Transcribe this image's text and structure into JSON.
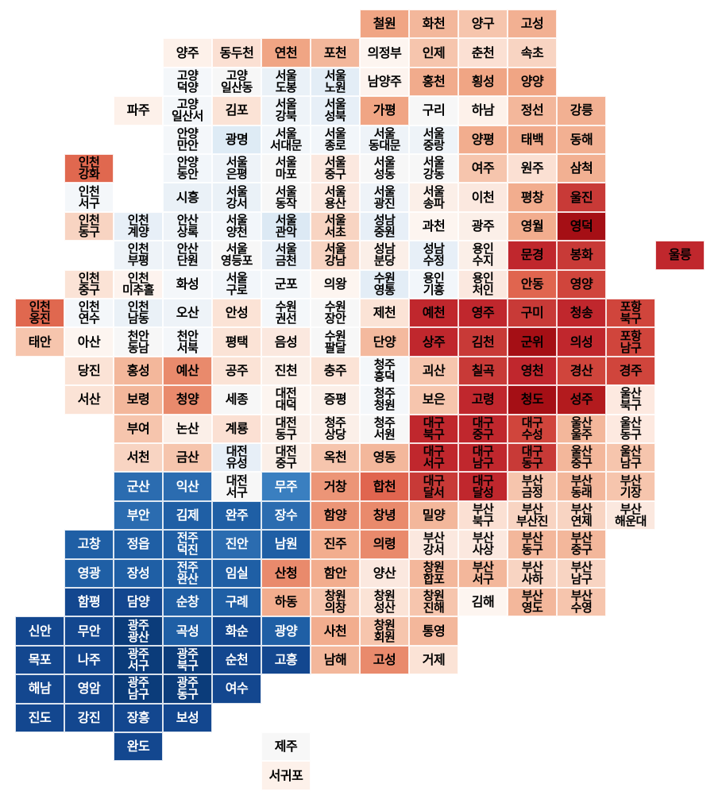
{
  "rows": [
    [
      null,
      null,
      null,
      null,
      null,
      null,
      null,
      {
        "label": "철원",
        "color": "#f0a584"
      },
      {
        "label": "화천",
        "color": "#f3b79b"
      },
      {
        "label": "양구",
        "color": "#f6c5ad"
      },
      {
        "label": "고성",
        "color": "#f2b092"
      }
    ],
    [
      null,
      null,
      null,
      {
        "label": "양주",
        "color": "#fdf1ea"
      },
      {
        "label": "동두천",
        "color": "#fbe0d3"
      },
      {
        "label": "연천",
        "color": "#f0a584"
      },
      {
        "label": "포천",
        "color": "#f3b79b"
      },
      {
        "label": "의정부",
        "color": "#fdf5f0"
      },
      {
        "label": "인제",
        "color": "#f6c5ad"
      },
      {
        "label": "춘천",
        "color": "#fbe0d3"
      },
      {
        "label": "속초",
        "color": "#f8d4c2"
      }
    ],
    [
      null,
      null,
      null,
      {
        "label": "고양\n덕양",
        "color": "#f4f7fa"
      },
      {
        "label": "고양\n일산동",
        "color": "#f7f7f7"
      },
      {
        "label": "서울\n도봉",
        "color": "#eaf1f7"
      },
      {
        "label": "서울\n노원",
        "color": "#e3edf6"
      },
      {
        "label": "남양주",
        "color": "#fdf3ee"
      },
      {
        "label": "홍천",
        "color": "#f1ab8c"
      },
      {
        "label": "횡성",
        "color": "#f0a584"
      },
      {
        "label": "양양",
        "color": "#f0a584"
      }
    ],
    [
      null,
      null,
      {
        "label": "파주",
        "color": "#fdf1ea"
      },
      {
        "label": "고양\n일산서",
        "color": "#f4f7fa"
      },
      {
        "label": "김포",
        "color": "#fbe3d6"
      },
      {
        "label": "서울\n강북",
        "color": "#eef3f8"
      },
      {
        "label": "서울\n성북",
        "color": "#e7eff7"
      },
      {
        "label": "가평",
        "color": "#f0a584"
      },
      {
        "label": "구리",
        "color": "#f7f7f7"
      },
      {
        "label": "하남",
        "color": "#fdf1ea"
      },
      {
        "label": "정선",
        "color": "#f3b79b"
      },
      {
        "label": "강릉",
        "color": "#f2b092"
      }
    ],
    [
      null,
      null,
      null,
      {
        "label": "안양\n만안",
        "color": "#f4f7fa"
      },
      {
        "label": "광명",
        "color": "#deebf5"
      },
      {
        "label": "서울\n서대문",
        "color": "#f2f6fa"
      },
      {
        "label": "서울\n종로",
        "color": "#f2f6fa"
      },
      {
        "label": "서울\n동대문",
        "color": "#eef3f8"
      },
      {
        "label": "서울\n중랑",
        "color": "#eef3f8"
      },
      {
        "label": "양평",
        "color": "#f2ad8e"
      },
      {
        "label": "태백",
        "color": "#f1ab8c"
      },
      {
        "label": "동해",
        "color": "#f2b092"
      }
    ],
    [
      null,
      {
        "label": "인천\n강화",
        "color": "#e0684f"
      },
      null,
      {
        "label": "안양\n동안",
        "color": "#f2f6fa"
      },
      {
        "label": "서울\n은평",
        "color": "#eef3f8"
      },
      {
        "label": "서울\n마포",
        "color": "#f7f7f7"
      },
      {
        "label": "서울\n중구",
        "color": "#fbe8df"
      },
      {
        "label": "서울\n성동",
        "color": "#f7f7f7"
      },
      {
        "label": "서울\n강동",
        "color": "#f7f7f7"
      },
      {
        "label": "여주",
        "color": "#f6c5ad"
      },
      {
        "label": "원주",
        "color": "#fbe0d3"
      },
      {
        "label": "삼척",
        "color": "#f2b092"
      }
    ],
    [
      null,
      {
        "label": "인천\n서구",
        "color": "#f4f7fa"
      },
      null,
      {
        "label": "시흥",
        "color": "#eaf1f7"
      },
      {
        "label": "서울\n강서",
        "color": "#eaf1f7"
      },
      {
        "label": "서울\n동작",
        "color": "#f7f7f7"
      },
      {
        "label": "서울\n용산",
        "color": "#fbe8df"
      },
      {
        "label": "서울\n광진",
        "color": "#eef3f8"
      },
      {
        "label": "서울\n송파",
        "color": "#fbefe8"
      },
      {
        "label": "이천",
        "color": "#fbe8df"
      },
      {
        "label": "평창",
        "color": "#f2ad8e"
      },
      {
        "label": "울진",
        "color": "#c83a37"
      }
    ],
    [
      null,
      {
        "label": "인천\n동구",
        "color": "#f8d4c2"
      },
      {
        "label": "인천\n계양",
        "color": "#e7eff7"
      },
      {
        "label": "안산\n상록",
        "color": "#eef3f8"
      },
      {
        "label": "서울\n양천",
        "color": "#f2f6fa"
      },
      {
        "label": "서울\n관악",
        "color": "#dce9f4"
      },
      {
        "label": "서울\n서초",
        "color": "#f8d4c2"
      },
      {
        "label": "성남\n중원",
        "color": "#e7eff7"
      },
      {
        "label": "과천",
        "color": "#fdf5f0"
      },
      {
        "label": "광주",
        "color": "#fbefe8"
      },
      {
        "label": "영월",
        "color": "#f2ad8e"
      },
      {
        "label": "영덕",
        "color": "#a50f15"
      }
    ],
    [
      null,
      null,
      {
        "label": "인천\n부평",
        "color": "#eef3f8"
      },
      {
        "label": "안산\n단원",
        "color": "#eef3f8"
      },
      {
        "label": "서울\n영등포",
        "color": "#f7f7f7"
      },
      {
        "label": "서울\n금천",
        "color": "#e7eff7"
      },
      {
        "label": "서울\n강남",
        "color": "#f8d4c2"
      },
      {
        "label": "성남\n분당",
        "color": "#fbefe8"
      },
      {
        "label": "성남\n수정",
        "color": "#e7eff7"
      },
      {
        "label": "용인\n수지",
        "color": "#fbefe8"
      },
      {
        "label": "문경",
        "color": "#c0272d"
      },
      {
        "label": "봉화",
        "color": "#c83a37"
      },
      null,
      {
        "label": "울릉",
        "color": "#c0272d"
      }
    ],
    [
      null,
      {
        "label": "인천\n중구",
        "color": "#fbe3d6"
      },
      {
        "label": "인천\n미추홀",
        "color": "#fdf3ee"
      },
      {
        "label": "화성",
        "color": "#f4f7fa"
      },
      {
        "label": "서울\n구로",
        "color": "#f2f6fa"
      },
      {
        "label": "군포",
        "color": "#f4f7fa"
      },
      {
        "label": "의왕",
        "color": "#fdf5f0"
      },
      {
        "label": "수원\n영통",
        "color": "#e3edf6"
      },
      {
        "label": "용인\n기흥",
        "color": "#f2f6fa"
      },
      {
        "label": "용인\n처인",
        "color": "#fbe8df"
      },
      {
        "label": "안동",
        "color": "#e0654f"
      },
      {
        "label": "영양",
        "color": "#d0453c"
      }
    ],
    [
      {
        "label": "인천\n옹진",
        "color": "#e0684f"
      },
      {
        "label": "인천\n연수",
        "color": "#f4f7fa"
      },
      {
        "label": "인천\n남동",
        "color": "#eaf1f7"
      },
      {
        "label": "오산",
        "color": "#eef3f8"
      },
      {
        "label": "안성",
        "color": "#fbe3d6"
      },
      {
        "label": "수원\n권선",
        "color": "#f4f7fa"
      },
      {
        "label": "수원\n장안",
        "color": "#f7f7f7"
      },
      {
        "label": "제천",
        "color": "#fbe3d6"
      },
      {
        "label": "예천",
        "color": "#c0272d"
      },
      {
        "label": "영주",
        "color": "#c0272d"
      },
      {
        "label": "구미",
        "color": "#c83a37"
      },
      {
        "label": "청송",
        "color": "#c0272d"
      },
      {
        "label": "포항\n북구",
        "color": "#d0453c"
      }
    ],
    [
      {
        "label": "태안",
        "color": "#f6c5ad"
      },
      {
        "label": "아산",
        "color": "#fdf5f0"
      },
      {
        "label": "천안\n동남",
        "color": "#f7f7f7"
      },
      {
        "label": "천안\n서북",
        "color": "#f4f7fa"
      },
      {
        "label": "평택",
        "color": "#fbe3d6"
      },
      {
        "label": "음성",
        "color": "#fbe8df"
      },
      {
        "label": "수원\n팔달",
        "color": "#f7f7f7"
      },
      {
        "label": "단양",
        "color": "#f4b99e"
      },
      {
        "label": "상주",
        "color": "#c0272d"
      },
      {
        "label": "김천",
        "color": "#c83a37"
      },
      {
        "label": "군위",
        "color": "#a50f15"
      },
      {
        "label": "의성",
        "color": "#c0272d"
      },
      {
        "label": "포항\n남구",
        "color": "#d0453c"
      }
    ],
    [
      null,
      {
        "label": "당진",
        "color": "#fbe3d6"
      },
      {
        "label": "홍성",
        "color": "#f3b79b"
      },
      {
        "label": "예산",
        "color": "#e98a6c"
      },
      {
        "label": "공주",
        "color": "#fbe3d6"
      },
      {
        "label": "진천",
        "color": "#fbefe8"
      },
      {
        "label": "충주",
        "color": "#fbe3d6"
      },
      {
        "label": "청주\n흥덕",
        "color": "#f4f7fa"
      },
      {
        "label": "괴산",
        "color": "#f6c5ad"
      },
      {
        "label": "칠곡",
        "color": "#c83a37"
      },
      {
        "label": "영천",
        "color": "#c0272d"
      },
      {
        "label": "경산",
        "color": "#d0453c"
      },
      {
        "label": "경주",
        "color": "#d0453c"
      }
    ],
    [
      null,
      {
        "label": "서산",
        "color": "#fbe3d6"
      },
      {
        "label": "보령",
        "color": "#f3b79b"
      },
      {
        "label": "청양",
        "color": "#e98a6c"
      },
      {
        "label": "세종",
        "color": "#f7f7f7"
      },
      {
        "label": "대전\n대덕",
        "color": "#fdf5f0"
      },
      {
        "label": "증평",
        "color": "#fbefe8"
      },
      {
        "label": "청주\n청원",
        "color": "#f4f7fa"
      },
      {
        "label": "보은",
        "color": "#f6c5ad"
      },
      {
        "label": "고령",
        "color": "#c0272d"
      },
      {
        "label": "청도",
        "color": "#a50f15"
      },
      {
        "label": "성주",
        "color": "#b31b1e"
      },
      {
        "label": "울산\n북구",
        "color": "#fde9e0"
      }
    ],
    [
      null,
      null,
      {
        "label": "부여",
        "color": "#f6c5ad"
      },
      {
        "label": "논산",
        "color": "#fbefe8"
      },
      {
        "label": "계룡",
        "color": "#fbe0d3"
      },
      {
        "label": "대전\n동구",
        "color": "#fbefe8"
      },
      {
        "label": "청주\n상당",
        "color": "#fbefe8"
      },
      {
        "label": "청주\n서원",
        "color": "#f7f7f7"
      },
      {
        "label": "대구\n북구",
        "color": "#c0272d"
      },
      {
        "label": "대구\n중구",
        "color": "#c0272d"
      },
      {
        "label": "대구\n수성",
        "color": "#d0453c"
      },
      {
        "label": "울산\n울주",
        "color": "#f3b79b"
      },
      {
        "label": "울산\n동구",
        "color": "#fde9e0"
      }
    ],
    [
      null,
      null,
      {
        "label": "서천",
        "color": "#f8d4c2"
      },
      {
        "label": "금산",
        "color": "#f6c5ad"
      },
      {
        "label": "대전\n유성",
        "color": "#e7eff7"
      },
      {
        "label": "대전\n중구",
        "color": "#fbefe8"
      },
      {
        "label": "옥천",
        "color": "#f6c5ad"
      },
      {
        "label": "영동",
        "color": "#f3b79b"
      },
      {
        "label": "대구\n서구",
        "color": "#c0272d"
      },
      {
        "label": "대구\n남구",
        "color": "#c0272d"
      },
      {
        "label": "대구\n동구",
        "color": "#c83a37"
      },
      {
        "label": "울산\n중구",
        "color": "#f3b79b"
      },
      {
        "label": "울산\n남구",
        "color": "#f6c5ad"
      }
    ],
    [
      null,
      null,
      {
        "label": "군산",
        "color": "#2b6cb0"
      },
      {
        "label": "익산",
        "color": "#2b6cb0"
      },
      {
        "label": "대전\n서구",
        "color": "#f7f7f7"
      },
      {
        "label": "무주",
        "color": "#3a7fc0"
      },
      {
        "label": "거창",
        "color": "#ec9577"
      },
      {
        "label": "합천",
        "color": "#e0654f"
      },
      {
        "label": "대구\n달서",
        "color": "#c83a37"
      },
      {
        "label": "대구\n달성",
        "color": "#c0272d"
      },
      {
        "label": "부산\n금정",
        "color": "#f6c5ad"
      },
      {
        "label": "부산\n동래",
        "color": "#f3b79b"
      },
      {
        "label": "부산\n기장",
        "color": "#f6c5ad"
      }
    ],
    [
      null,
      null,
      {
        "label": "부안",
        "color": "#2b6cb0"
      },
      {
        "label": "김제",
        "color": "#1f5fa5"
      },
      {
        "label": "완주",
        "color": "#1f5fa5"
      },
      {
        "label": "장수",
        "color": "#2b6cb0"
      },
      {
        "label": "함양",
        "color": "#ec9577"
      },
      {
        "label": "창녕",
        "color": "#e98a6c"
      },
      {
        "label": "밀양",
        "color": "#f3b79b"
      },
      {
        "label": "부산\n북구",
        "color": "#fbe0d3"
      },
      {
        "label": "부산\n부산진",
        "color": "#f8d4c2"
      },
      {
        "label": "부산\n연제",
        "color": "#f8d4c2"
      },
      {
        "label": "부산\n해운대",
        "color": "#fbe8df"
      }
    ],
    [
      null,
      {
        "label": "고창",
        "color": "#1f5fa5"
      },
      {
        "label": "정읍",
        "color": "#1f5fa5"
      },
      {
        "label": "전주\n덕진",
        "color": "#1f5fa5"
      },
      {
        "label": "진안",
        "color": "#2b6cb0"
      },
      {
        "label": "남원",
        "color": "#1f5fa5"
      },
      {
        "label": "진주",
        "color": "#f2ad8e"
      },
      {
        "label": "의령",
        "color": "#e98a6c"
      },
      {
        "label": "부산\n강서",
        "color": "#fbe8df"
      },
      {
        "label": "부산\n사상",
        "color": "#fbe8df"
      },
      {
        "label": "부산\n동구",
        "color": "#f3b79b"
      },
      {
        "label": "부산\n중구",
        "color": "#f3b79b"
      }
    ],
    [
      null,
      {
        "label": "영광",
        "color": "#1f5fa5"
      },
      {
        "label": "장성",
        "color": "#1f5fa5"
      },
      {
        "label": "전주\n완산",
        "color": "#1f5fa5"
      },
      {
        "label": "임실",
        "color": "#1f5fa5"
      },
      {
        "label": "산청",
        "color": "#e98a6c"
      },
      {
        "label": "함안",
        "color": "#f2ad8e"
      },
      {
        "label": "양산",
        "color": "#fbe8df"
      },
      {
        "label": "창원\n합포",
        "color": "#f3b79b"
      },
      {
        "label": "부산\n서구",
        "color": "#f3b79b"
      },
      {
        "label": "부산\n사하",
        "color": "#f8d4c2"
      },
      {
        "label": "부산\n남구",
        "color": "#f8d4c2"
      }
    ],
    [
      null,
      {
        "label": "함평",
        "color": "#13478f"
      },
      {
        "label": "담양",
        "color": "#13478f"
      },
      {
        "label": "순창",
        "color": "#1f5fa5"
      },
      {
        "label": "구례",
        "color": "#1f5fa5"
      },
      {
        "label": "하동",
        "color": "#f2ad8e"
      },
      {
        "label": "창원\n의창",
        "color": "#f6c5ad"
      },
      {
        "label": "창원\n성산",
        "color": "#fbe3d6"
      },
      {
        "label": "창원\n진해",
        "color": "#f6c5ad"
      },
      {
        "label": "김해",
        "color": "#fdf5f0"
      },
      {
        "label": "부산\n영도",
        "color": "#f3b79b"
      },
      {
        "label": "부산\n수영",
        "color": "#f6c5ad"
      }
    ],
    [
      {
        "label": "신안",
        "color": "#13478f"
      },
      {
        "label": "무안",
        "color": "#13478f"
      },
      {
        "label": "광주\n광산",
        "color": "#0b3c7a"
      },
      {
        "label": "곡성",
        "color": "#1f5fa5"
      },
      {
        "label": "화순",
        "color": "#13478f"
      },
      {
        "label": "광양",
        "color": "#1f5fa5"
      },
      {
        "label": "사천",
        "color": "#f2ad8e"
      },
      {
        "label": "창원\n회원",
        "color": "#f6c5ad"
      },
      {
        "label": "통영",
        "color": "#f3b79b"
      }
    ],
    [
      {
        "label": "목포",
        "color": "#13478f"
      },
      {
        "label": "나주",
        "color": "#13478f"
      },
      {
        "label": "광주\n서구",
        "color": "#0b3c7a"
      },
      {
        "label": "광주\n북구",
        "color": "#0b3c7a"
      },
      {
        "label": "순천",
        "color": "#13478f"
      },
      {
        "label": "고흥",
        "color": "#13478f"
      },
      {
        "label": "남해",
        "color": "#f3b79b"
      },
      {
        "label": "고성",
        "color": "#e98a6c"
      },
      {
        "label": "거제",
        "color": "#fbe3d6"
      }
    ],
    [
      {
        "label": "해남",
        "color": "#13478f"
      },
      {
        "label": "영암",
        "color": "#13478f"
      },
      {
        "label": "광주\n남구",
        "color": "#0b3c7a"
      },
      {
        "label": "광주\n동구",
        "color": "#0b3c7a"
      },
      {
        "label": "여수",
        "color": "#13478f"
      }
    ],
    [
      {
        "label": "진도",
        "color": "#13478f"
      },
      {
        "label": "강진",
        "color": "#13478f"
      },
      {
        "label": "장흥",
        "color": "#13478f"
      },
      {
        "label": "보성",
        "color": "#13478f"
      }
    ],
    [
      null,
      null,
      {
        "label": "완도",
        "color": "#13478f"
      },
      null,
      null,
      {
        "label": "제주",
        "color": "#f7f7f7"
      }
    ],
    [
      null,
      null,
      null,
      null,
      null,
      {
        "label": "서귀포",
        "color": "#fdf1ea"
      }
    ]
  ]
}
